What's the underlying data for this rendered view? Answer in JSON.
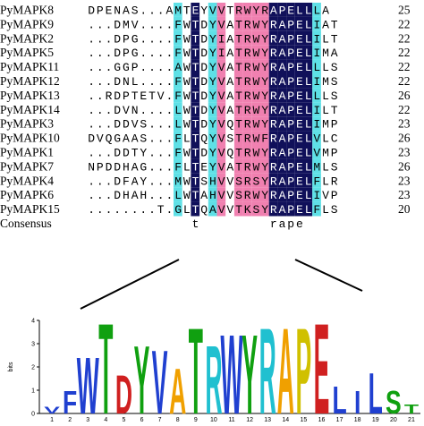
{
  "alignment": {
    "rows": [
      {
        "name": "PyMAPK8",
        "sequence": "DPENAS...AMTEYVVTRWYRAPELLLA",
        "count": "25"
      },
      {
        "name": "PyMAPK9",
        "sequence": "...DMV....FWTDYVATRWYRAPELIAT",
        "count": "22"
      },
      {
        "name": "PyMAPK2",
        "sequence": "...DPG....FWTDYIATRWYRAPELILT",
        "count": "22"
      },
      {
        "name": "PyMAPK5",
        "sequence": "...DPG....FWTDYIATRWYRAPELIMA",
        "count": "22"
      },
      {
        "name": "PyMAPK11",
        "sequence": "...GGP....AWTDYVATRWYRAPELLLS",
        "count": "22"
      },
      {
        "name": "PyMAPK12",
        "sequence": "...DNL....FWTDYVATRWYRAPELIMS",
        "count": "22"
      },
      {
        "name": "PyMAPK13",
        "sequence": "..RDPTETV.FWTDYVATRWYRAPELLLS",
        "count": "26"
      },
      {
        "name": "PyMAPK14",
        "sequence": "...DVN....LWTDYVATRWYRAPELILT",
        "count": "22"
      },
      {
        "name": "PyMAPK3",
        "sequence": "...DDVS...LWTDYVQTRWYRAPELIMP",
        "count": "23"
      },
      {
        "name": "PyMAPK10",
        "sequence": "DVQGAAS...FLTQYVSTRWFRAPELVLC",
        "count": "26"
      },
      {
        "name": "PyMAPK1",
        "sequence": "...DDTY...FWTDYVQTRWYRAPELVMP",
        "count": "23"
      },
      {
        "name": "PyMAPK7",
        "sequence": "NPDDHAG...FLTEYVATRWYRAPELMLS",
        "count": "26"
      },
      {
        "name": "PyMAPK4",
        "sequence": "...DFAY...MWTSHVVSRSYRAPELFLR",
        "count": "23"
      },
      {
        "name": "PyMAPK6",
        "sequence": "...DHAH...LWTAHVVSRWYRAPELIVP",
        "count": "23"
      },
      {
        "name": "PyMAPK15",
        "sequence": "........T.GLTQAVVTKSYRAPELFLS",
        "count": "20"
      }
    ],
    "consensus": {
      "name": "Consensus",
      "sequence": "            t        rape    "
    }
  },
  "logo": {
    "ylabel": "bits",
    "ylim": [
      0,
      4
    ],
    "yticks": [
      0,
      1,
      2,
      3,
      4
    ],
    "positions": [
      {
        "label": "1",
        "letter": "V",
        "height": 0.3
      },
      {
        "label": "2",
        "letter": "F",
        "height": 1.0
      },
      {
        "label": "3",
        "letter": "W",
        "height": 2.5
      },
      {
        "label": "4",
        "letter": "T",
        "height": 4.0
      },
      {
        "label": "5",
        "letter": "D",
        "height": 1.7
      },
      {
        "label": "6",
        "letter": "Y",
        "height": 3.0
      },
      {
        "label": "7",
        "letter": "V",
        "height": 2.8
      },
      {
        "label": "8",
        "letter": "A",
        "height": 2.0
      },
      {
        "label": "9",
        "letter": "T",
        "height": 3.8
      },
      {
        "label": "10",
        "letter": "R",
        "height": 3.0
      },
      {
        "label": "11",
        "letter": "W",
        "height": 3.5
      },
      {
        "label": "12",
        "letter": "Y",
        "height": 3.5
      },
      {
        "label": "13",
        "letter": "R",
        "height": 3.8
      },
      {
        "label": "14",
        "letter": "A",
        "height": 3.8
      },
      {
        "label": "15",
        "letter": "P",
        "height": 3.8
      },
      {
        "label": "16",
        "letter": "E",
        "height": 4.0
      },
      {
        "label": "17",
        "letter": "L",
        "height": 1.2
      },
      {
        "label": "18",
        "letter": "I",
        "height": 1.0
      },
      {
        "label": "19",
        "letter": "L",
        "height": 1.8
      },
      {
        "label": "20",
        "letter": "S",
        "height": 1.0
      },
      {
        "label": "21",
        "letter": "T",
        "height": 0.4
      }
    ]
  }
}
